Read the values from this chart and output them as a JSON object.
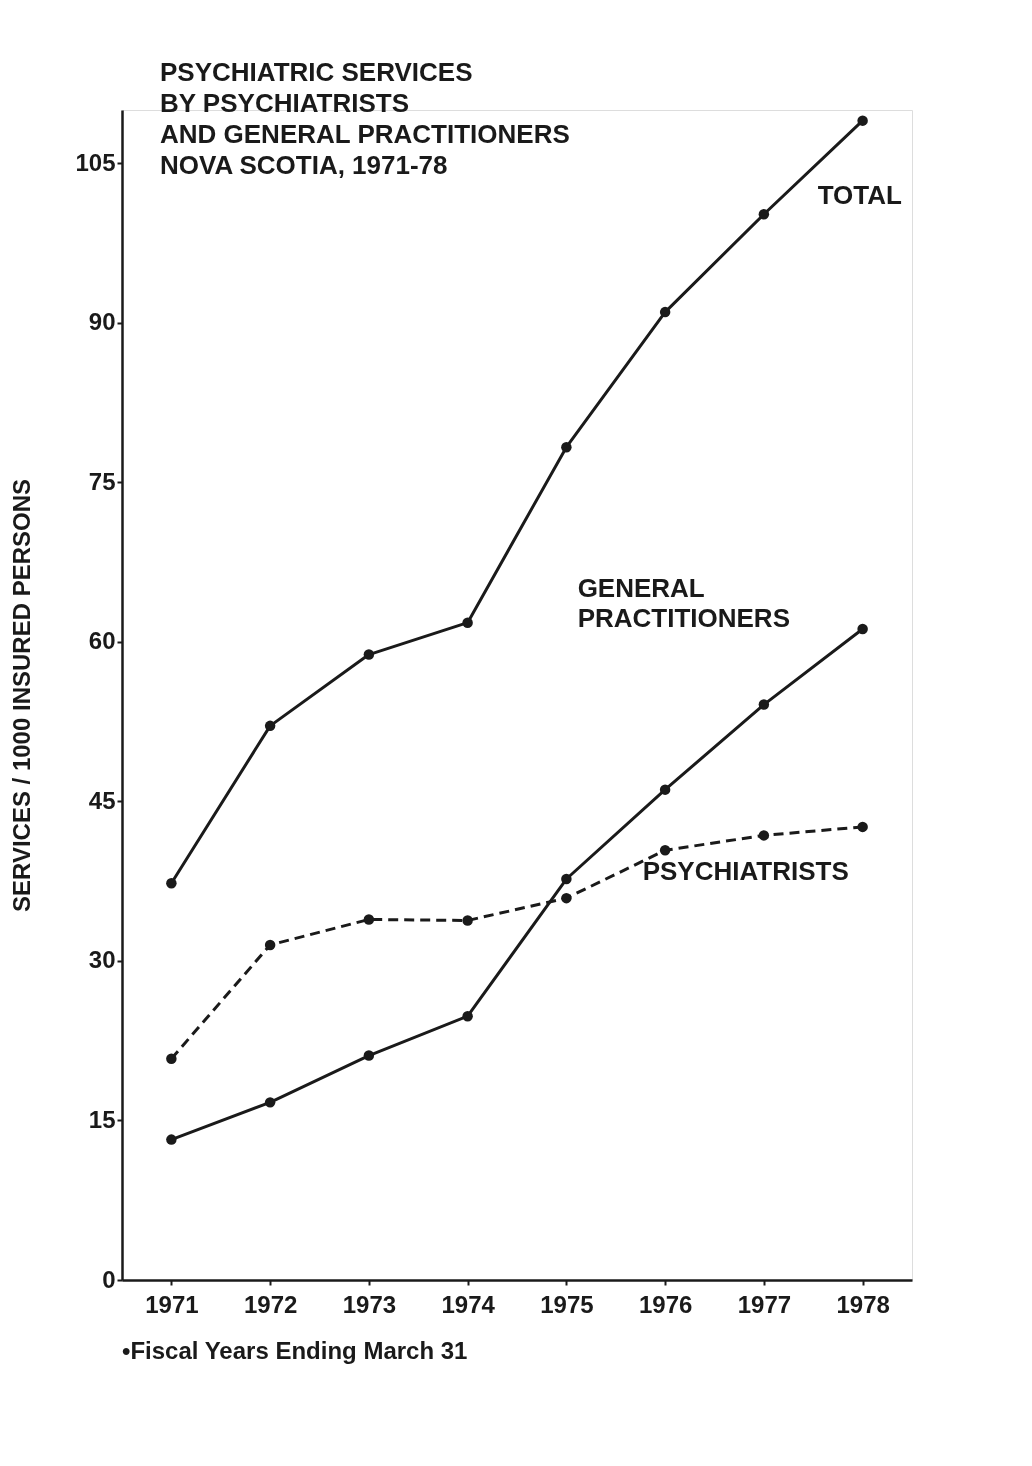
{
  "chart_data": {
    "type": "line",
    "title": "PSYCHIATRIC SERVICES\nBY PSYCHIATRISTS\nAND GENERAL PRACTITIONERS\nNOVA SCOTIA, 1971-78",
    "ylabel": "SERVICES / 1000 INSURED PERSONS",
    "categories": [
      "1971",
      "1972",
      "1973",
      "1974",
      "1975",
      "1976",
      "1977",
      "1978"
    ],
    "series": [
      {
        "name": "TOTAL",
        "color": "#1a1a1a",
        "line_style": "solid",
        "values": [
          37.3,
          52.1,
          58.8,
          61.8,
          78.3,
          91.0,
          100.2,
          109.0
        ]
      },
      {
        "name": "GENERAL PRACTITIONERS",
        "color": "#1a1a1a",
        "line_style": "solid",
        "values": [
          13.2,
          16.7,
          21.1,
          24.8,
          37.7,
          46.1,
          54.1,
          61.2
        ]
      },
      {
        "name": "PSYCHIATRISTS",
        "color": "#1a1a1a",
        "line_style": "dashed",
        "values": [
          20.8,
          31.5,
          33.9,
          33.8,
          35.9,
          40.4,
          41.8,
          42.6
        ]
      }
    ],
    "ylim": [
      0,
      110
    ],
    "yticks": [
      0,
      15,
      30,
      45,
      60,
      75,
      90,
      105
    ],
    "grid": false,
    "marker": "circle",
    "annotations": [
      "•Fiscal Years Ending March 31"
    ]
  }
}
